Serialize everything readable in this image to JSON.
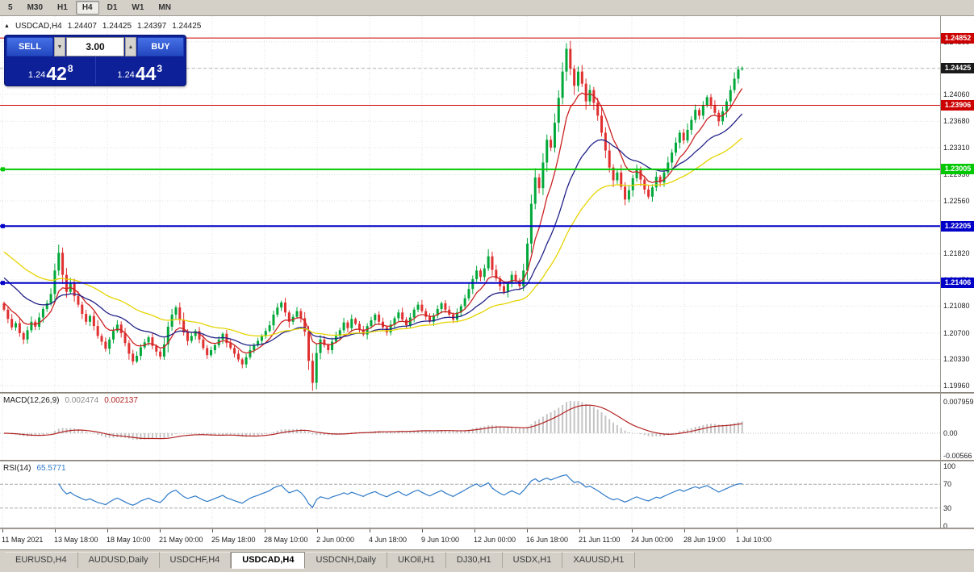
{
  "toolbar": {
    "timeframes": [
      "5",
      "M30",
      "H1",
      "H4",
      "D1",
      "W1",
      "MN"
    ],
    "active": "H4"
  },
  "chart": {
    "symbol_header": {
      "arrow": "▲",
      "symbol": "USDCAD,H4",
      "open": "1.24407",
      "high": "1.24425",
      "low": "1.24397",
      "close": "1.24425"
    },
    "trade_panel": {
      "sell_label": "SELL",
      "buy_label": "BUY",
      "volume": "3.00",
      "step_down_glyph": "▼",
      "step_up_glyph": "▲",
      "sell_price_prefix": "1.24",
      "sell_price_big": "42",
      "sell_price_sup": "8",
      "buy_price_prefix": "1.24",
      "buy_price_big": "44",
      "buy_price_sup": "3"
    },
    "colors": {
      "candle_up": "#00a83a",
      "candle_down": "#e03030",
      "ma_fast": "#cc2222",
      "ma_mid": "#222288",
      "ma_slow": "#e6d400",
      "grid": "#e0e0e0"
    },
    "mas": [
      {
        "name": "fast-ma-red",
        "color": "#cc2222",
        "alpha": 0.22,
        "seed": 1.2115
      },
      {
        "name": "mid-ma-navy",
        "color": "#222288",
        "alpha": 0.085,
        "seed": 1.2152
      },
      {
        "name": "slow-ma-yellow",
        "color": "#e6d400",
        "alpha": 0.045,
        "seed": 1.2188
      }
    ],
    "hlines": [
      {
        "name": "resistance-upper",
        "price": 1.24852,
        "label": "1.24852",
        "color": "#cc0000",
        "width": 1,
        "handles": false
      },
      {
        "name": "resistance-lower",
        "price": 1.23906,
        "label": "1.23906",
        "color": "#cc0000",
        "width": 1,
        "handles": false
      },
      {
        "name": "green-level",
        "price": 1.23005,
        "label": "1.23005",
        "color": "#00c800",
        "width": 2,
        "handles": true
      },
      {
        "name": "blue-level-upper",
        "price": 1.22205,
        "label": "1.22205",
        "color": "#0000c8",
        "width": 2,
        "handles": true
      },
      {
        "name": "blue-level-lower",
        "price": 1.21406,
        "label": "1.21406",
        "color": "#0000c8",
        "width": 2,
        "handles": true
      }
    ],
    "current_price": {
      "value": 1.24425,
      "label": "1.24425",
      "tag_bg": "#1a1a1a"
    },
    "price_axis_gridlines": [
      1.248,
      1.2443,
      1.2406,
      1.2368,
      1.2331,
      1.2293,
      1.2256,
      1.2219,
      1.2182,
      1.2145,
      1.2108,
      1.207,
      1.2033,
      1.1996
    ],
    "candles": {
      "open_first": 1.2112,
      "closes": [
        1.2103,
        1.209,
        1.2078,
        1.2084,
        1.207,
        1.2061,
        1.2074,
        1.2086,
        1.2079,
        1.2092,
        1.2104,
        1.2112,
        1.2125,
        1.2158,
        1.2183,
        1.2152,
        1.2128,
        1.214,
        1.2122,
        1.211,
        1.2097,
        1.2086,
        1.2094,
        1.208,
        1.2066,
        1.2058,
        1.2048,
        1.2061,
        1.2073,
        1.2082,
        1.207,
        1.2056,
        1.2041,
        1.203,
        1.2038,
        1.205,
        1.2057,
        1.2064,
        1.2052,
        1.2044,
        1.2037,
        1.2054,
        1.2079,
        1.2096,
        1.2106,
        1.2089,
        1.2071,
        1.2059,
        1.2066,
        1.2073,
        1.2061,
        1.2049,
        1.2039,
        1.2046,
        1.2053,
        1.2061,
        1.2069,
        1.2056,
        1.2049,
        1.2041,
        1.2033,
        1.2026,
        1.2036,
        1.2046,
        1.2053,
        1.2059,
        1.2066,
        1.2073,
        1.2081,
        1.2096,
        1.2106,
        1.2113,
        1.2099,
        1.2086,
        1.2093,
        1.2101,
        1.2091,
        1.2072,
        1.2031,
        1.2,
        1.2042,
        1.2061,
        1.2053,
        1.2046,
        1.2058,
        1.2066,
        1.2074,
        1.2085,
        1.2077,
        1.209,
        1.2083,
        1.2075,
        1.2068,
        1.208,
        1.2088,
        1.2096,
        1.2086,
        1.2078,
        1.2071,
        1.2082,
        1.2091,
        1.2099,
        1.2089,
        1.2081,
        1.2092,
        1.2103,
        1.211,
        1.2101,
        1.2093,
        1.2086,
        1.2095,
        1.2104,
        1.2112,
        1.2103,
        1.2096,
        1.2089,
        1.2099,
        1.2108,
        1.2119,
        1.2132,
        1.2146,
        1.2158,
        1.2149,
        1.2161,
        1.2178,
        1.2159,
        1.2147,
        1.2136,
        1.2128,
        1.214,
        1.2152,
        1.2144,
        1.2136,
        1.2158,
        1.2196,
        1.2252,
        1.2289,
        1.2274,
        1.231,
        1.2342,
        1.2331,
        1.2366,
        1.2401,
        1.2438,
        1.247,
        1.2442,
        1.2418,
        1.2438,
        1.2421,
        1.2396,
        1.2412,
        1.2394,
        1.2376,
        1.2352,
        1.2327,
        1.2303,
        1.2285,
        1.2296,
        1.2276,
        1.2258,
        1.2271,
        1.2288,
        1.2301,
        1.2286,
        1.2272,
        1.2262,
        1.2275,
        1.229,
        1.2282,
        1.2296,
        1.231,
        1.2324,
        1.2338,
        1.2352,
        1.2341,
        1.2356,
        1.237,
        1.2384,
        1.2376,
        1.239,
        1.2402,
        1.2391,
        1.238,
        1.2368,
        1.2382,
        1.2396,
        1.2412,
        1.2428,
        1.2441,
        1.24425
      ]
    }
  },
  "indicators": {
    "macd": {
      "name": "MACD(12,26,9)",
      "value": "0.002474",
      "signal_value": "0.002137",
      "fast": 12,
      "slow": 26,
      "signal": 9,
      "hist_color": "#c4c4c4",
      "signal_color": "#b22222",
      "axis_labels": [
        {
          "text": "0.007959",
          "v": 0.007959
        },
        {
          "text": "0.00",
          "v": 0
        },
        {
          "text": "-0.00566",
          "v": -0.00566
        }
      ]
    },
    "rsi": {
      "name": "RSI(14)",
      "value": "65.5771",
      "period": 14,
      "line_color": "#2f7ac8",
      "levels": [
        70,
        30
      ],
      "axis_labels": [
        {
          "text": "100",
          "v": 100
        },
        {
          "text": "70",
          "v": 70
        },
        {
          "text": "30",
          "v": 30
        },
        {
          "text": "0",
          "v": 0
        }
      ]
    }
  },
  "time_axis": {
    "labels": [
      "11 May 2021",
      "13 May 18:00",
      "18 May 10:00",
      "21 May 00:00",
      "25 May 18:00",
      "28 May 10:00",
      "2 Jun 00:00",
      "4 Jun 18:00",
      "9 Jun 10:00",
      "12 Jun 00:00",
      "16 Jun 18:00",
      "21 Jun 11:00",
      "24 Jun 00:00",
      "28 Jun 19:00",
      "1 Jul 10:00"
    ]
  },
  "tabs": [
    {
      "label": "EURUSD,H4",
      "active": false
    },
    {
      "label": "AUDUSD,Daily",
      "active": false
    },
    {
      "label": "USDCHF,H4",
      "active": false
    },
    {
      "label": "USDCAD,H4",
      "active": true
    },
    {
      "label": "USDCNH,Daily",
      "active": false
    },
    {
      "label": "UKOil,H1",
      "active": false
    },
    {
      "label": "DJ30,H1",
      "active": false
    },
    {
      "label": "USDX,H1",
      "active": false
    },
    {
      "label": "XAUUSD,H1",
      "active": false
    }
  ]
}
